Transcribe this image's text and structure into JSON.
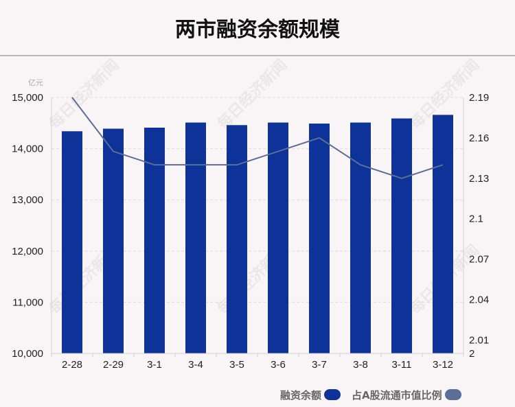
{
  "title": "两市融资余额规模",
  "watermark": "每日经济新闻",
  "colors": {
    "bar": "#0d3399",
    "line": "#5a6e99"
  },
  "legend": [
    {
      "label": "融资余额",
      "color": "#0d3399"
    },
    {
      "label": "占A股流通市值比例",
      "color": "#5a6e99"
    }
  ],
  "chart_data": {
    "type": "bar+line",
    "categories": [
      "2-28",
      "2-29",
      "3-1",
      "3-4",
      "3-5",
      "3-6",
      "3-7",
      "3-8",
      "3-11",
      "3-12"
    ],
    "series": [
      {
        "name": "融资余额",
        "type": "bar",
        "axis": "left",
        "values": [
          14340,
          14390,
          14410,
          14510,
          14460,
          14510,
          14490,
          14510,
          14590,
          14660
        ]
      },
      {
        "name": "占A股流通市值比例",
        "type": "line",
        "axis": "right",
        "values": [
          2.19,
          2.15,
          2.14,
          2.14,
          2.14,
          2.15,
          2.16,
          2.14,
          2.13,
          2.14
        ]
      }
    ],
    "y_left": {
      "unit": "亿元",
      "ylim": [
        10000,
        15000
      ],
      "ticks": [
        "10,000",
        "11,000",
        "12,000",
        "13,000",
        "14,000",
        "15,000"
      ]
    },
    "y_right": {
      "ylim": [
        2,
        2.19
      ],
      "ticks": [
        "2",
        "2.01",
        "2.04",
        "2.07",
        "2.1",
        "2.13",
        "2.16",
        "2.19"
      ]
    },
    "grid": true,
    "legend_position": "bottom-right"
  }
}
